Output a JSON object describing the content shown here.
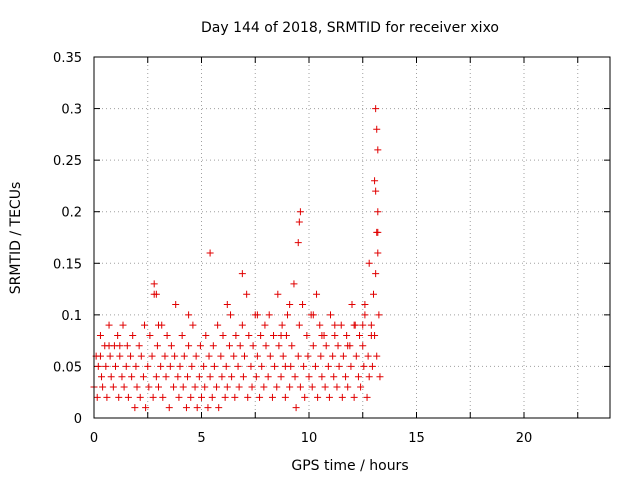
{
  "chart_data": {
    "type": "scatter",
    "title": "Day 144 of 2018, SRMTID for receiver xixo",
    "xlabel": "GPS time / hours",
    "ylabel": "SRMTID / TECUs",
    "xlim": [
      0,
      24
    ],
    "ylim": [
      0,
      0.35
    ],
    "xticks": [
      0,
      5,
      10,
      15,
      20
    ],
    "xtick_labels": [
      "0",
      "5",
      "10",
      "15",
      "20"
    ],
    "yticks": [
      0,
      0.05,
      0.1,
      0.15,
      0.2,
      0.25,
      0.3,
      0.35
    ],
    "ytick_labels": [
      "0",
      "0.05",
      "0.1",
      "0.15",
      "0.2",
      "0.25",
      "0.3",
      "0.35"
    ],
    "grid": true,
    "legend": "none",
    "marker": "+",
    "colors": {
      "series": "#e00000",
      "grid": "#a0a0a0",
      "axis": "#000000"
    },
    "series": [
      {
        "name": "SRMTID",
        "x": [
          0.0,
          0.1,
          0.15,
          0.2,
          0.3,
          0.35,
          0.4,
          0.5,
          0.55,
          0.6,
          0.7,
          0.75,
          0.8,
          0.9,
          0.95,
          1.0,
          1.1,
          1.15,
          1.2,
          1.3,
          1.35,
          1.4,
          1.5,
          1.55,
          1.6,
          1.7,
          1.75,
          1.8,
          1.9,
          1.95,
          2.0,
          2.1,
          2.15,
          2.2,
          2.3,
          2.35,
          2.4,
          2.5,
          2.55,
          2.6,
          2.7,
          2.75,
          2.8,
          2.9,
          2.95,
          3.0,
          3.1,
          3.15,
          3.2,
          3.3,
          3.35,
          3.4,
          3.5,
          3.55,
          3.6,
          3.7,
          3.75,
          3.8,
          3.9,
          3.95,
          4.0,
          4.1,
          4.15,
          4.2,
          4.3,
          4.35,
          4.4,
          4.5,
          4.55,
          4.6,
          4.7,
          4.75,
          4.8,
          4.9,
          4.95,
          5.0,
          5.1,
          5.15,
          5.2,
          5.3,
          5.35,
          5.4,
          5.5,
          5.55,
          5.6,
          5.7,
          5.75,
          5.8,
          5.9,
          5.95,
          6.0,
          6.1,
          6.15,
          6.2,
          6.3,
          6.35,
          6.4,
          6.5,
          6.55,
          6.6,
          6.7,
          6.75,
          6.8,
          6.9,
          6.95,
          7.0,
          7.1,
          7.15,
          7.2,
          7.3,
          7.35,
          7.4,
          7.5,
          7.55,
          7.6,
          7.7,
          7.75,
          7.8,
          7.9,
          7.95,
          8.0,
          8.1,
          8.15,
          8.2,
          8.3,
          8.35,
          8.4,
          8.5,
          8.55,
          8.6,
          8.7,
          8.75,
          8.8,
          8.9,
          8.95,
          9.0,
          9.1,
          9.15,
          9.2,
          9.3,
          9.35,
          9.4,
          9.5,
          9.55,
          9.6,
          9.7,
          9.75,
          9.8,
          9.9,
          9.95,
          10.0,
          10.1,
          10.15,
          10.2,
          10.3,
          10.35,
          10.4,
          10.5,
          10.55,
          10.6,
          10.7,
          10.75,
          10.8,
          10.9,
          10.95,
          11.0,
          11.1,
          11.15,
          11.2,
          11.3,
          11.35,
          11.4,
          11.5,
          11.55,
          11.6,
          11.7,
          11.75,
          11.8,
          11.9,
          11.95,
          12.0,
          12.1,
          12.15,
          12.2,
          12.3,
          12.35,
          12.4,
          12.5,
          12.55,
          12.6,
          12.7,
          12.75,
          12.8,
          12.9,
          12.95,
          13.0,
          13.05,
          13.1,
          13.15,
          13.2,
          13.25,
          13.3,
          13.1,
          13.15,
          13.2,
          13.05,
          13.1,
          13.2,
          13.15,
          13.2,
          12.8,
          12.6,
          12.5,
          9.6,
          9.55,
          9.5,
          5.4,
          6.9,
          2.8,
          2.9,
          0.7,
          3.0,
          4.4,
          6.2,
          8.7,
          10.2,
          11.2,
          11.8,
          12.9,
          0.3,
          1.2,
          7.6,
          8.9,
          9.1,
          10.6,
          12.1
        ],
        "y": [
          0.03,
          0.06,
          0.02,
          0.05,
          0.08,
          0.04,
          0.03,
          0.07,
          0.05,
          0.02,
          0.09,
          0.06,
          0.04,
          0.03,
          0.07,
          0.05,
          0.08,
          0.02,
          0.06,
          0.04,
          0.09,
          0.03,
          0.05,
          0.07,
          0.02,
          0.06,
          0.04,
          0.08,
          0.01,
          0.05,
          0.03,
          0.07,
          0.02,
          0.06,
          0.04,
          0.09,
          0.01,
          0.05,
          0.03,
          0.08,
          0.06,
          0.02,
          0.12,
          0.04,
          0.07,
          0.03,
          0.05,
          0.09,
          0.02,
          0.06,
          0.04,
          0.08,
          0.01,
          0.05,
          0.07,
          0.03,
          0.06,
          0.11,
          0.04,
          0.02,
          0.05,
          0.08,
          0.03,
          0.06,
          0.01,
          0.04,
          0.07,
          0.02,
          0.05,
          0.09,
          0.03,
          0.06,
          0.01,
          0.04,
          0.07,
          0.02,
          0.05,
          0.03,
          0.08,
          0.01,
          0.06,
          0.04,
          0.02,
          0.07,
          0.05,
          0.03,
          0.09,
          0.01,
          0.06,
          0.04,
          0.08,
          0.02,
          0.05,
          0.03,
          0.07,
          0.1,
          0.04,
          0.06,
          0.02,
          0.08,
          0.05,
          0.03,
          0.07,
          0.09,
          0.04,
          0.06,
          0.12,
          0.02,
          0.08,
          0.05,
          0.03,
          0.07,
          0.1,
          0.04,
          0.06,
          0.02,
          0.08,
          0.05,
          0.03,
          0.09,
          0.07,
          0.04,
          0.1,
          0.06,
          0.02,
          0.08,
          0.05,
          0.03,
          0.12,
          0.07,
          0.04,
          0.09,
          0.06,
          0.02,
          0.08,
          0.1,
          0.03,
          0.05,
          0.07,
          0.13,
          0.04,
          0.01,
          0.06,
          0.09,
          0.03,
          0.11,
          0.05,
          0.02,
          0.08,
          0.06,
          0.04,
          0.1,
          0.03,
          0.07,
          0.05,
          0.12,
          0.02,
          0.09,
          0.06,
          0.04,
          0.08,
          0.03,
          0.07,
          0.05,
          0.02,
          0.1,
          0.06,
          0.04,
          0.08,
          0.03,
          0.07,
          0.05,
          0.09,
          0.02,
          0.06,
          0.04,
          0.08,
          0.03,
          0.07,
          0.05,
          0.11,
          0.02,
          0.09,
          0.06,
          0.04,
          0.08,
          0.03,
          0.07,
          0.05,
          0.1,
          0.02,
          0.06,
          0.04,
          0.09,
          0.05,
          0.12,
          0.08,
          0.14,
          0.06,
          0.18,
          0.1,
          0.04,
          0.3,
          0.28,
          0.26,
          0.23,
          0.22,
          0.2,
          0.18,
          0.16,
          0.15,
          0.11,
          0.09,
          0.2,
          0.19,
          0.17,
          0.16,
          0.14,
          0.13,
          0.12,
          0.07,
          0.09,
          0.1,
          0.11,
          0.08,
          0.1,
          0.09,
          0.07,
          0.08,
          0.06,
          0.07,
          0.1,
          0.05,
          0.11,
          0.08,
          0.09
        ]
      }
    ]
  }
}
